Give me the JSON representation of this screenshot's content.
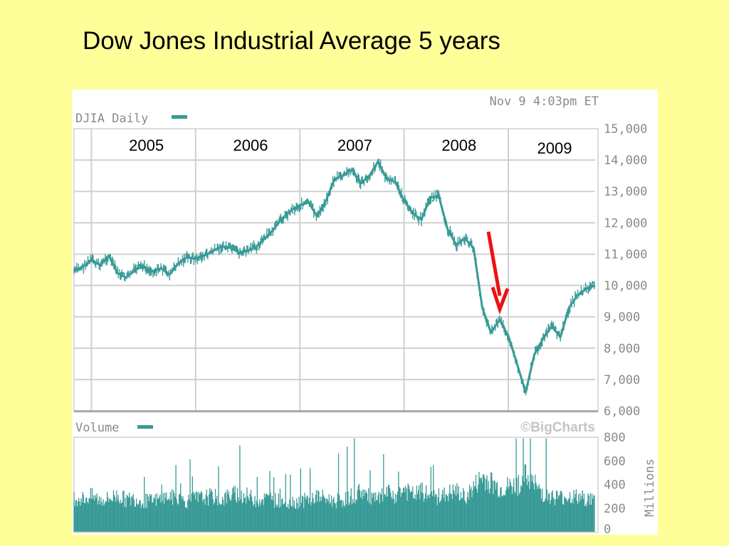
{
  "title": "Dow Jones Industrial Average 5 years",
  "colors": {
    "background": "#ffff99",
    "series": "#389a96",
    "arrow": "#ee1111",
    "grid": "#d0d0d0",
    "axis_text": "#8a8a8a"
  },
  "chart_data": [
    {
      "type": "line",
      "timestamp": "Nov 9 4:03pm ET",
      "legend_label": "DJIA Daily",
      "legend_position": "top-left",
      "watermark": "©BigCharts",
      "year_labels": [
        "2005",
        "2006",
        "2007",
        "2008",
        "2009"
      ],
      "x_range": [
        "2004-11",
        "2009-11"
      ],
      "ylim": [
        6000,
        15000
      ],
      "y_ticks": [
        6000,
        7000,
        8000,
        9000,
        10000,
        11000,
        12000,
        13000,
        14000,
        15000
      ],
      "y_tick_labels": [
        "6,000",
        "7,000",
        "8,000",
        "9,000",
        "10,000",
        "11,000",
        "12,000",
        "13,000",
        "14,000",
        "15,000"
      ],
      "grid": true,
      "series": [
        {
          "name": "DJIA Daily",
          "x": [
            "2004-11",
            "2004-12",
            "2005-01",
            "2005-02",
            "2005-03",
            "2005-04",
            "2005-05",
            "2005-06",
            "2005-07",
            "2005-08",
            "2005-09",
            "2005-10",
            "2005-11",
            "2005-12",
            "2006-01",
            "2006-02",
            "2006-03",
            "2006-04",
            "2006-05",
            "2006-06",
            "2006-07",
            "2006-08",
            "2006-09",
            "2006-10",
            "2006-11",
            "2006-12",
            "2007-01",
            "2007-02",
            "2007-03",
            "2007-04",
            "2007-05",
            "2007-06",
            "2007-07",
            "2007-08",
            "2007-09",
            "2007-10",
            "2007-11",
            "2007-12",
            "2008-01",
            "2008-02",
            "2008-03",
            "2008-04",
            "2008-05",
            "2008-06",
            "2008-07",
            "2008-08",
            "2008-09",
            "2008-10",
            "2008-11",
            "2008-12",
            "2009-01",
            "2009-02",
            "2009-03",
            "2009-04",
            "2009-05",
            "2009-06",
            "2009-07",
            "2009-08",
            "2009-09",
            "2009-10",
            "2009-11"
          ],
          "y": [
            10450,
            10600,
            10800,
            10650,
            10950,
            10400,
            10250,
            10500,
            10600,
            10450,
            10550,
            10350,
            10700,
            10900,
            10850,
            10950,
            11100,
            11250,
            11200,
            11050,
            11100,
            11250,
            11500,
            11800,
            12150,
            12400,
            12550,
            12650,
            12200,
            12700,
            13400,
            13500,
            13700,
            13250,
            13500,
            13950,
            13400,
            13300,
            12700,
            12300,
            12100,
            12800,
            12850,
            11800,
            11300,
            11500,
            11200,
            9300,
            8500,
            8900,
            8400,
            7500,
            6600,
            7800,
            8300,
            8700,
            8350,
            9300,
            9700,
            9900,
            10000
          ]
        }
      ]
    },
    {
      "type": "bar",
      "legend_label": "Volume",
      "legend_position": "top-left",
      "ylim": [
        0,
        800
      ],
      "y_ticks": [
        0,
        200,
        400,
        600,
        800
      ],
      "y_tick_labels": [
        "0",
        "200",
        "400",
        "600",
        "800"
      ],
      "ylabel": "Millions",
      "series": [
        {
          "name": "Volume",
          "x": [
            "2004-11",
            "2004-12",
            "2005-01",
            "2005-02",
            "2005-03",
            "2005-04",
            "2005-05",
            "2005-06",
            "2005-07",
            "2005-08",
            "2005-09",
            "2005-10",
            "2005-11",
            "2005-12",
            "2006-01",
            "2006-02",
            "2006-03",
            "2006-04",
            "2006-05",
            "2006-06",
            "2006-07",
            "2006-08",
            "2006-09",
            "2006-10",
            "2006-11",
            "2006-12",
            "2007-01",
            "2007-02",
            "2007-03",
            "2007-04",
            "2007-05",
            "2007-06",
            "2007-07",
            "2007-08",
            "2007-09",
            "2007-10",
            "2007-11",
            "2007-12",
            "2008-01",
            "2008-02",
            "2008-03",
            "2008-04",
            "2008-05",
            "2008-06",
            "2008-07",
            "2008-08",
            "2008-09",
            "2008-10",
            "2008-11",
            "2008-12",
            "2009-01",
            "2009-02",
            "2009-03",
            "2009-04",
            "2009-05",
            "2009-06",
            "2009-07",
            "2009-08",
            "2009-09",
            "2009-10",
            "2009-11"
          ],
          "y": [
            290,
            280,
            300,
            270,
            280,
            310,
            270,
            280,
            260,
            260,
            280,
            300,
            270,
            260,
            280,
            290,
            300,
            270,
            310,
            320,
            300,
            270,
            280,
            270,
            260,
            250,
            260,
            270,
            300,
            280,
            260,
            270,
            300,
            350,
            290,
            270,
            330,
            300,
            360,
            310,
            340,
            300,
            280,
            320,
            340,
            290,
            370,
            460,
            420,
            360,
            380,
            390,
            470,
            400,
            330,
            300,
            290,
            300,
            290,
            280,
            270
          ]
        }
      ]
    }
  ],
  "annotation": {
    "type": "arrow",
    "points_to": "2008 decline near 9,000"
  }
}
